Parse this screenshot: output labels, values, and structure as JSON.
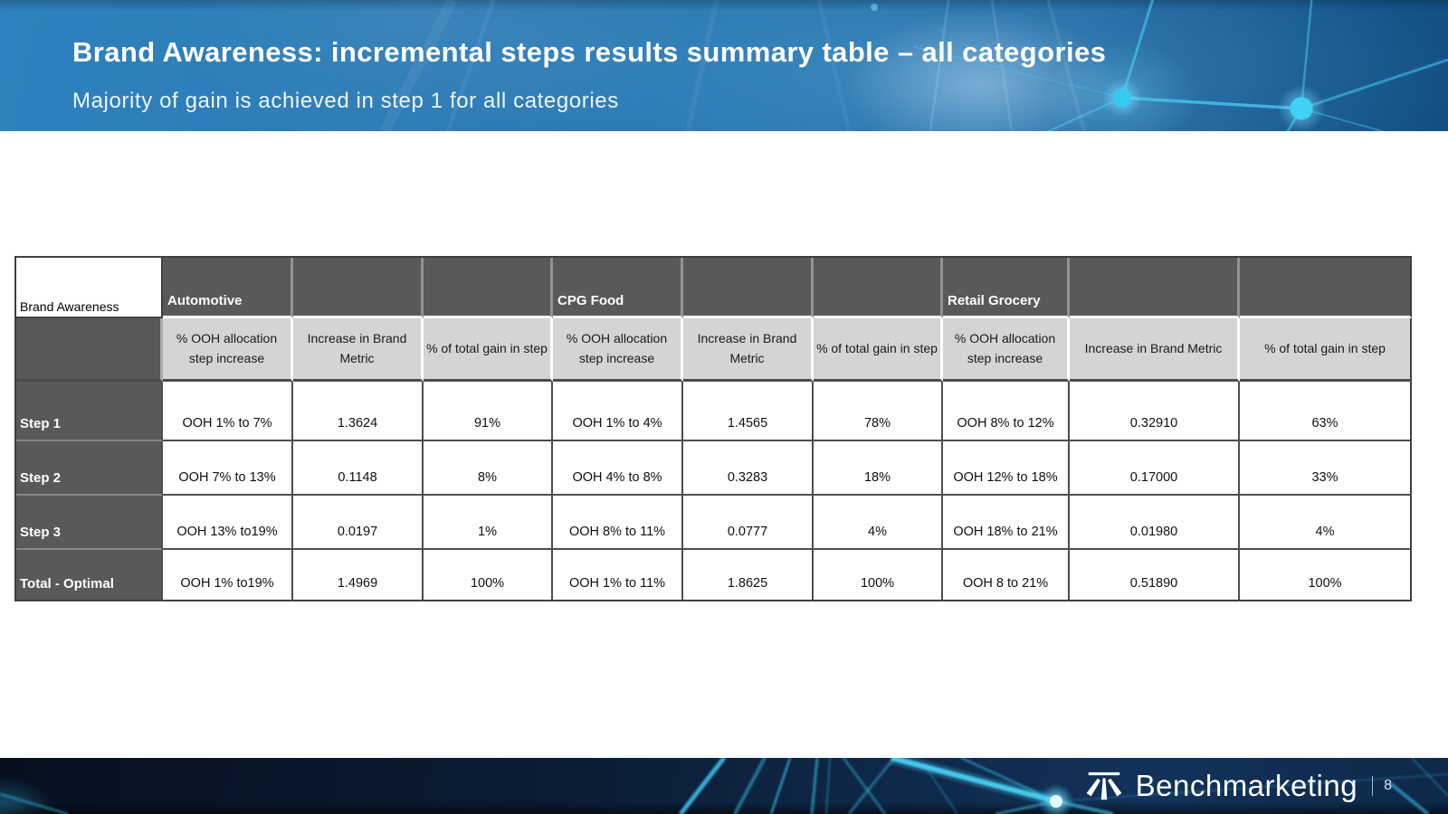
{
  "slide": {
    "title": "Brand Awareness: incremental steps results summary table – all categories",
    "subtitle": "Majority of gain is achieved in step 1 for all categories",
    "footer": {
      "brand": "Benchmarketing",
      "page_number": "8",
      "logo_icon": "road-perspective-icon"
    }
  },
  "table": {
    "corner_label": "Brand Awareness",
    "groups": [
      "Automotive",
      "CPG Food",
      "Retail Grocery"
    ],
    "sub_headers": [
      "% OOH allocation step increase",
      "Increase in Brand Metric",
      "% of total gain in step"
    ],
    "rows": [
      {
        "label": "Step 1",
        "cells": [
          "OOH 1% to 7%",
          "1.3624",
          "91%",
          "OOH 1% to 4%",
          "1.4565",
          "78%",
          "OOH 8% to 12%",
          "0.32910",
          "63%"
        ]
      },
      {
        "label": "Step 2",
        "cells": [
          "OOH 7% to 13%",
          "0.1148",
          "8%",
          "OOH 4% to 8%",
          "0.3283",
          "18%",
          "OOH 12% to 18%",
          "0.17000",
          "33%"
        ]
      },
      {
        "label": "Step 3",
        "cells": [
          "OOH 13% to19%",
          "0.0197",
          "1%",
          "OOH 8% to 11%",
          "0.0777",
          "4%",
          "OOH 18% to 21%",
          "0.01980",
          "4%"
        ]
      },
      {
        "label": "Total - Optimal",
        "cells": [
          "OOH 1% to19%",
          "1.4969",
          "100%",
          "OOH 1% to 11%",
          "1.8625",
          "100%",
          "OOH 8 to 21%",
          "0.51890",
          "100%"
        ]
      }
    ]
  },
  "colors": {
    "banner_blue": "#2a79b4",
    "accent_cyan": "#35c8f0",
    "header_dark_gray": "#595959",
    "header_light_gray": "#d4d4d4",
    "footer_navy": "#0b1a30"
  }
}
